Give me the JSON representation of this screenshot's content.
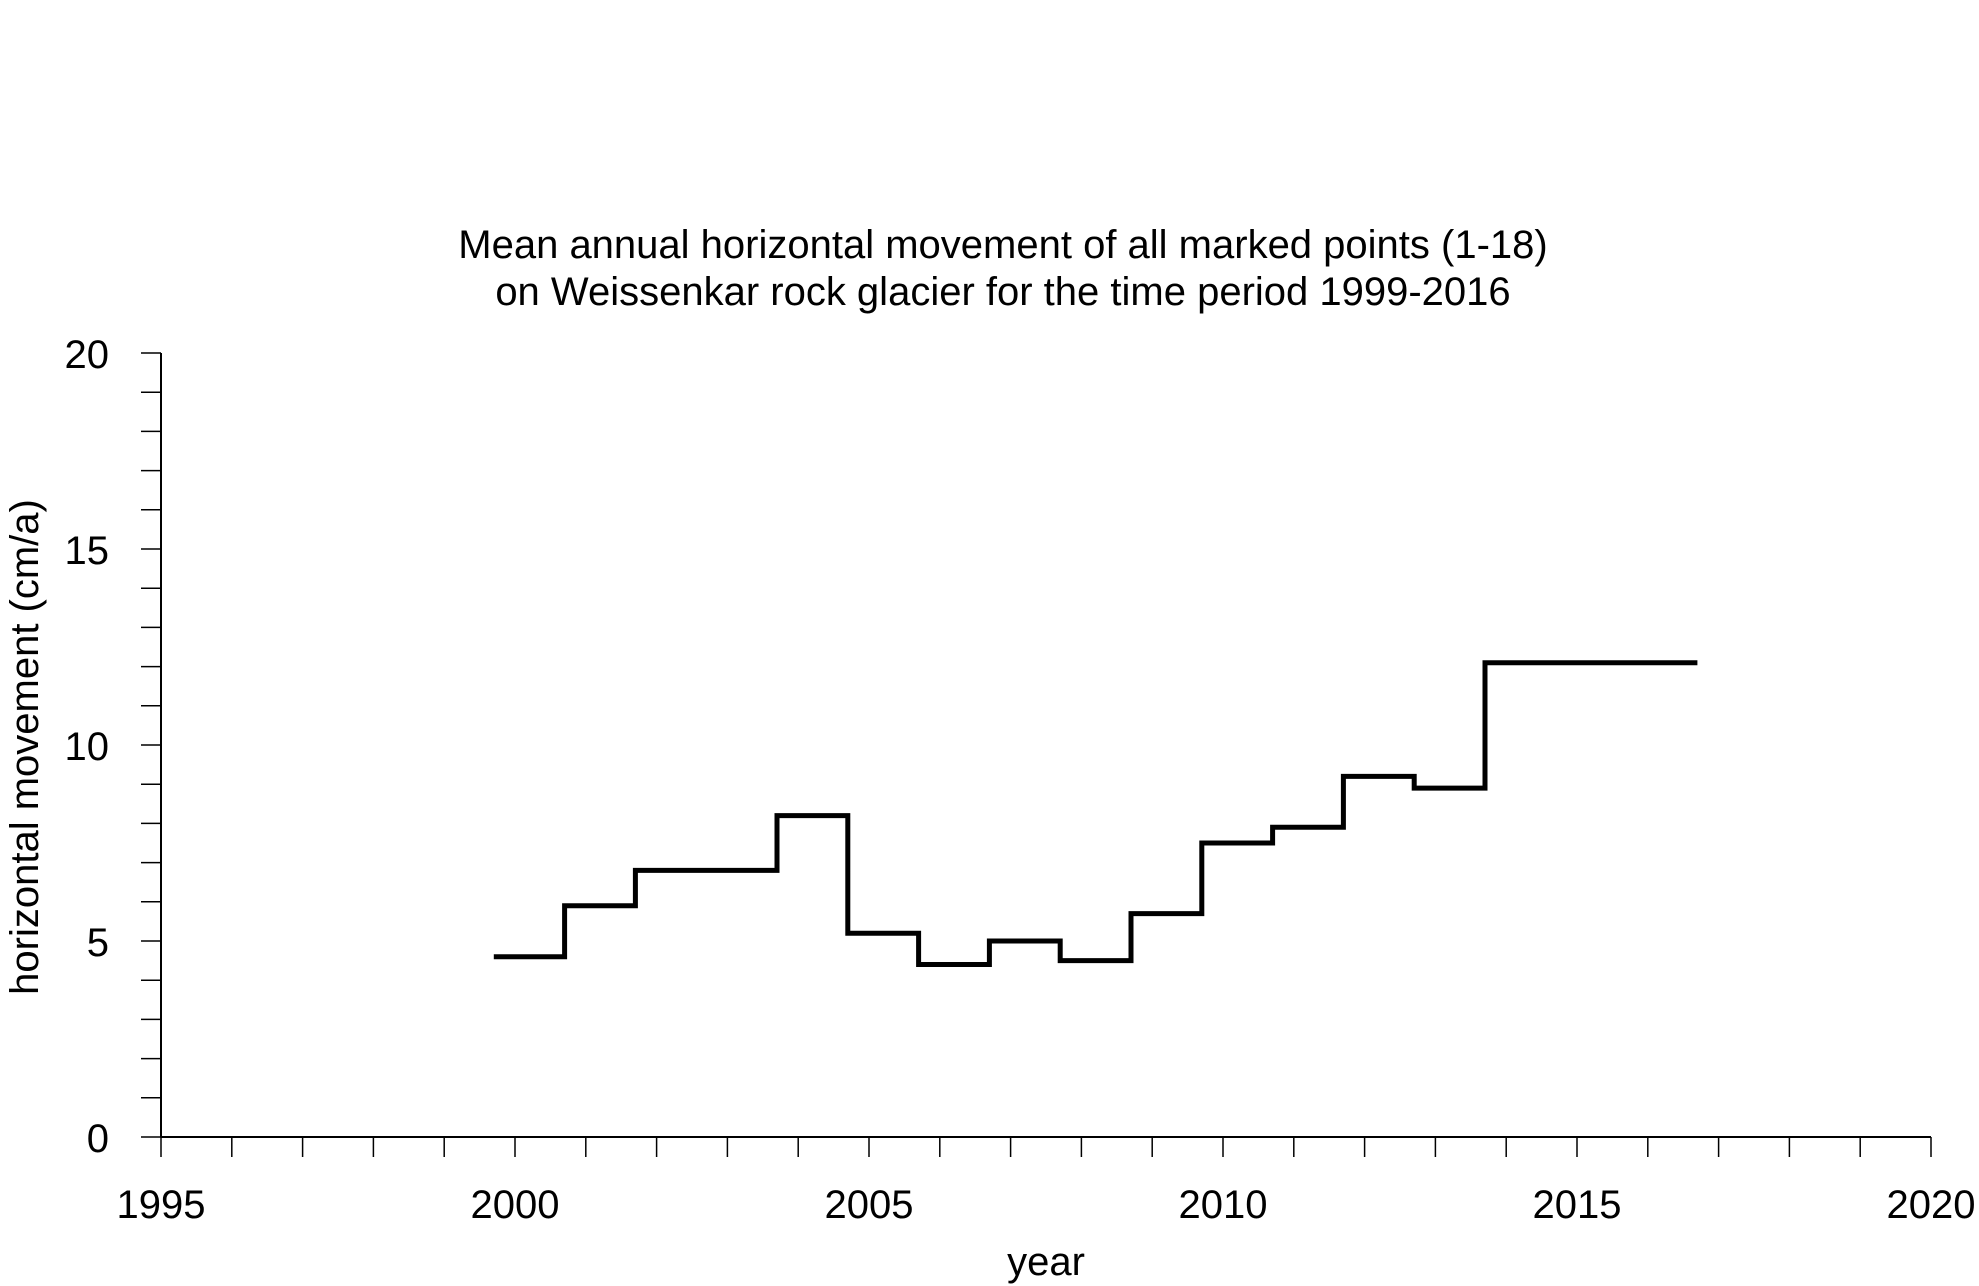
{
  "chart_data": {
    "type": "line",
    "step": true,
    "title": "Mean annual horizontal movement of all marked points (1-18)",
    "subtitle": "on Weissenkar rock glacier for the time period 1999-2016",
    "xlabel": "year",
    "ylabel": "horizontal movement (cm/a)",
    "xlim": [
      1995,
      2020
    ],
    "ylim": [
      0,
      20
    ],
    "x_ticks": [
      "1995",
      "2000",
      "2005",
      "2010",
      "2015",
      "2020"
    ],
    "y_ticks": [
      "0",
      "5",
      "10",
      "15",
      "20"
    ],
    "x_minor_step": 1,
    "y_minor_step": 1,
    "grid": false,
    "series": [
      {
        "color": "#000000",
        "segments": [
          {
            "x0": 1999.7,
            "x1": 2000.7,
            "y": 4.6
          },
          {
            "x0": 2000.7,
            "x1": 2001.7,
            "y": 5.9
          },
          {
            "x0": 2001.7,
            "x1": 2003.7,
            "y": 6.8
          },
          {
            "x0": 2003.7,
            "x1": 2004.7,
            "y": 8.2
          },
          {
            "x0": 2004.7,
            "x1": 2005.7,
            "y": 5.2
          },
          {
            "x0": 2005.7,
            "x1": 2006.7,
            "y": 4.4
          },
          {
            "x0": 2006.7,
            "x1": 2007.7,
            "y": 5.0
          },
          {
            "x0": 2007.7,
            "x1": 2008.7,
            "y": 4.5
          },
          {
            "x0": 2008.7,
            "x1": 2009.7,
            "y": 5.7
          },
          {
            "x0": 2009.7,
            "x1": 2010.7,
            "y": 7.5
          },
          {
            "x0": 2010.7,
            "x1": 2011.7,
            "y": 7.9
          },
          {
            "x0": 2011.7,
            "x1": 2012.7,
            "y": 9.2
          },
          {
            "x0": 2012.7,
            "x1": 2013.7,
            "y": 8.9
          },
          {
            "x0": 2013.7,
            "x1": 2016.7,
            "y": 12.1
          }
        ]
      }
    ]
  }
}
